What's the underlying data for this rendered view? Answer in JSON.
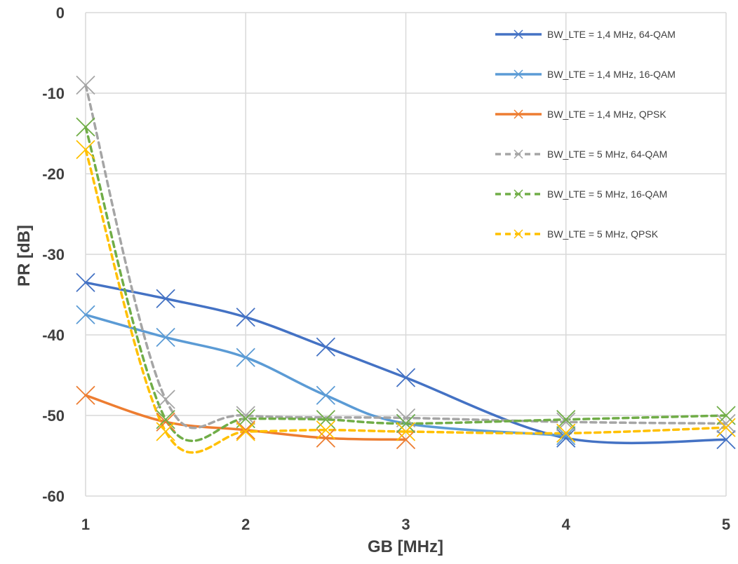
{
  "chart_data": {
    "type": "line",
    "title": "",
    "xlabel": "GB [MHz]",
    "ylabel": "PR [dB]",
    "xlim": [
      1,
      5
    ],
    "ylim": [
      -60,
      0
    ],
    "xticks": [
      1,
      2,
      3,
      4,
      5
    ],
    "yticks": [
      0,
      -10,
      -20,
      -30,
      -40,
      -50,
      -60
    ],
    "grid": true,
    "legend_position": "top-right",
    "series": [
      {
        "name": "BW_LTE = 1,4 MHz, 64-QAM",
        "color": "#4472C4",
        "dash": "solid",
        "x": [
          1,
          1.5,
          2,
          2.5,
          3,
          4,
          5
        ],
        "y": [
          -33.5,
          -35.5,
          -37.8,
          -41.5,
          -45.3,
          -52.8,
          -53.0
        ]
      },
      {
        "name": "BW_LTE = 1,4 MHz, 16-QAM",
        "color": "#5B9BD5",
        "dash": "solid",
        "x": [
          1,
          1.5,
          2,
          2.5,
          3,
          4
        ],
        "y": [
          -37.5,
          -40.3,
          -42.8,
          -47.5,
          -51.0,
          -52.5
        ]
      },
      {
        "name": "BW_LTE = 1,4 MHz, QPSK",
        "color": "#ED7D31",
        "dash": "solid",
        "x": [
          1,
          1.5,
          2,
          2.5,
          3
        ],
        "y": [
          -47.5,
          -50.8,
          -51.8,
          -52.8,
          -53.0
        ]
      },
      {
        "name": "BW_LTE = 5 MHz, 64-QAM",
        "color": "#A5A5A5",
        "dash": "dashed",
        "x": [
          1,
          1.5,
          2,
          3,
          4,
          5
        ],
        "y": [
          -9.0,
          -48.0,
          -50.0,
          -50.3,
          -50.8,
          -51.0
        ]
      },
      {
        "name": "BW_LTE = 5 MHz, 16-QAM",
        "color": "#70AD47",
        "dash": "dashed",
        "x": [
          1,
          1.5,
          2,
          2.5,
          3,
          4,
          5
        ],
        "y": [
          -14.2,
          -50.5,
          -50.4,
          -50.5,
          -51.0,
          -50.5,
          -50.0
        ]
      },
      {
        "name": "BW_LTE = 5 MHz, QPSK",
        "color": "#FFC000",
        "dash": "dashed",
        "x": [
          1,
          1.5,
          2,
          2.5,
          3,
          4,
          5
        ],
        "y": [
          -17.0,
          -52.0,
          -52.0,
          -51.8,
          -52.0,
          -52.2,
          -51.5
        ]
      }
    ]
  }
}
